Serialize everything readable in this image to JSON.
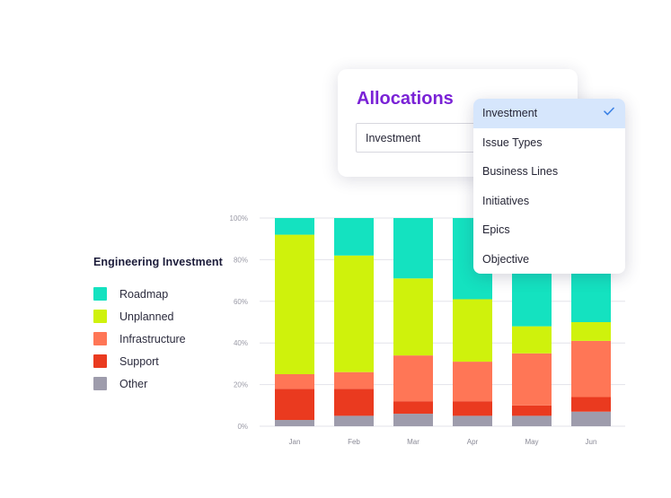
{
  "legend": {
    "title": "Engineering Investment",
    "items": [
      {
        "label": "Roadmap",
        "color": "#14e2c0"
      },
      {
        "label": "Unplanned",
        "color": "#cff20c"
      },
      {
        "label": "Infrastructure",
        "color": "#ff7656"
      },
      {
        "label": "Support",
        "color": "#ea3a1f"
      },
      {
        "label": "Other",
        "color": "#9e9cac"
      }
    ]
  },
  "allocations": {
    "title": "Allocations",
    "selected_value": "Investment"
  },
  "dropdown": {
    "options": [
      "Investment",
      "Issue Types",
      "Business Lines",
      "Initiatives",
      "Epics",
      "Objective"
    ],
    "selected_index": 0,
    "check_icon": "check-icon"
  },
  "chart_data": {
    "type": "bar",
    "stacked": true,
    "categories": [
      "Jan",
      "Feb",
      "Mar",
      "Apr",
      "May",
      "Jun"
    ],
    "ylim": [
      0,
      100
    ],
    "yticks": [
      "0%",
      "20%",
      "40%",
      "60%",
      "80%",
      "100%"
    ],
    "grid": true,
    "legend_position": "left",
    "series": [
      {
        "name": "Other",
        "color": "#9e9cac",
        "values": [
          3,
          5,
          6,
          5,
          5,
          7
        ]
      },
      {
        "name": "Support",
        "color": "#ea3a1f",
        "values": [
          15,
          13,
          6,
          7,
          5,
          7
        ]
      },
      {
        "name": "Infrastructure",
        "color": "#ff7656",
        "values": [
          7,
          8,
          22,
          19,
          25,
          27
        ]
      },
      {
        "name": "Unplanned",
        "color": "#cff20c",
        "values": [
          67,
          56,
          37,
          30,
          13,
          9
        ]
      },
      {
        "name": "Roadmap",
        "color": "#14e2c0",
        "values": [
          8,
          18,
          29,
          39,
          52,
          50
        ]
      }
    ]
  }
}
